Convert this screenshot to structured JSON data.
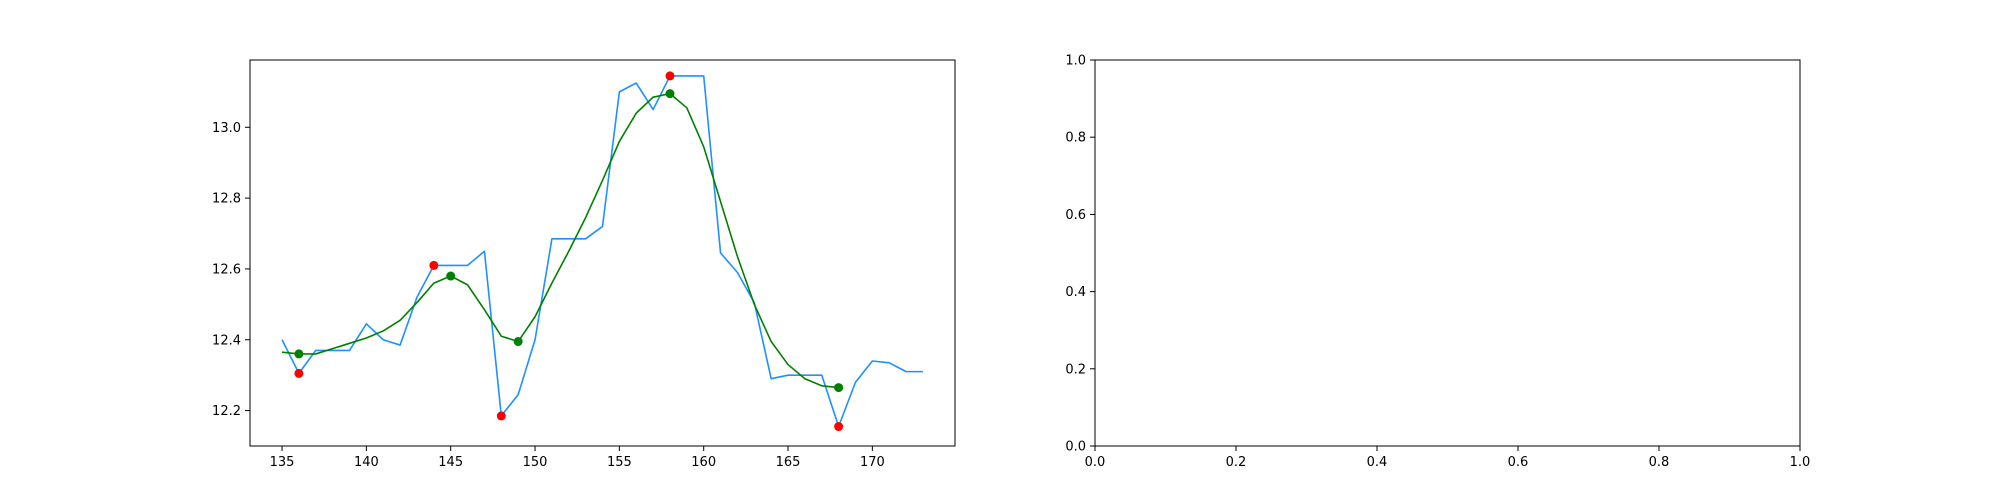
{
  "chart_data": [
    {
      "type": "line",
      "title": "",
      "xlabel": "",
      "ylabel": "",
      "xlim": [
        133.1,
        174.9
      ],
      "ylim": [
        12.1,
        13.19
      ],
      "xticks": [
        135,
        140,
        145,
        150,
        155,
        160,
        165,
        170
      ],
      "yticks": [
        12.2,
        12.4,
        12.6,
        12.8,
        13.0
      ],
      "xtick_labels": [
        "135",
        "140",
        "145",
        "150",
        "155",
        "160",
        "165",
        "170"
      ],
      "ytick_labels": [
        "12.2",
        "12.4",
        "12.6",
        "12.8",
        "13.0"
      ],
      "grid": false,
      "series": [
        {
          "kind": "line",
          "color": "#1E90FF",
          "x": [
            135,
            136,
            137,
            138,
            139,
            140,
            141,
            142,
            143,
            144,
            145,
            146,
            147,
            148,
            149,
            150,
            151,
            152,
            153,
            154,
            155,
            156,
            157,
            158,
            159,
            160,
            161,
            162,
            163,
            164,
            165,
            166,
            167,
            168,
            169,
            170,
            171,
            172,
            173
          ],
          "y": [
            12.4,
            12.305,
            12.37,
            12.37,
            12.37,
            12.445,
            12.4,
            12.385,
            12.52,
            12.61,
            12.61,
            12.61,
            12.65,
            12.185,
            12.245,
            12.4,
            12.685,
            12.685,
            12.685,
            12.72,
            13.1,
            13.125,
            13.05,
            13.145,
            13.145,
            13.145,
            12.645,
            12.59,
            12.505,
            12.29,
            12.3,
            12.3,
            12.3,
            12.155,
            12.28,
            12.34,
            12.335,
            12.31,
            12.31
          ]
        },
        {
          "kind": "line",
          "color": "#008000",
          "x": [
            135,
            136,
            137,
            138,
            139,
            140,
            141,
            142,
            143,
            144,
            145,
            146,
            147,
            148,
            149,
            150,
            151,
            152,
            153,
            154,
            155,
            156,
            157,
            158,
            159,
            160,
            161,
            162,
            163,
            164,
            165,
            166,
            167,
            168
          ],
          "y": [
            12.365,
            12.36,
            12.36,
            12.375,
            12.39,
            12.405,
            12.425,
            12.455,
            12.505,
            12.56,
            12.58,
            12.555,
            12.485,
            12.41,
            12.395,
            12.465,
            12.56,
            12.65,
            12.745,
            12.85,
            12.96,
            13.04,
            13.085,
            13.095,
            13.055,
            12.945,
            12.79,
            12.635,
            12.5,
            12.395,
            12.33,
            12.29,
            12.27,
            12.265
          ]
        },
        {
          "kind": "scatter",
          "color": "#FF0000",
          "x": [
            136,
            144,
            148,
            158,
            168
          ],
          "y": [
            12.305,
            12.61,
            12.185,
            13.145,
            12.155
          ]
        },
        {
          "kind": "scatter",
          "color": "#008000",
          "x": [
            136,
            145,
            149,
            158,
            168
          ],
          "y": [
            12.36,
            12.58,
            12.395,
            13.095,
            12.265
          ]
        }
      ]
    },
    {
      "type": "line",
      "title": "",
      "xlabel": "",
      "ylabel": "",
      "xlim": [
        0,
        1
      ],
      "ylim": [
        0,
        1
      ],
      "xticks": [
        0.0,
        0.2,
        0.4,
        0.6,
        0.8,
        1.0
      ],
      "yticks": [
        0.0,
        0.2,
        0.4,
        0.6,
        0.8,
        1.0
      ],
      "xtick_labels": [
        "0.0",
        "0.2",
        "0.4",
        "0.6",
        "0.8",
        "1.0"
      ],
      "ytick_labels": [
        "0.0",
        "0.2",
        "0.4",
        "0.6",
        "0.8",
        "1.0"
      ],
      "grid": false,
      "series": []
    }
  ]
}
